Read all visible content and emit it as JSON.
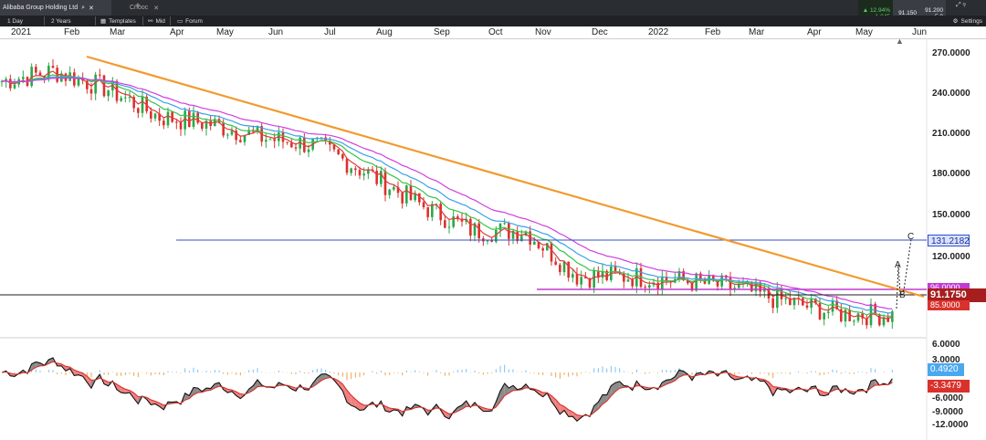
{
  "window": {
    "tab_title": "Alibaba Group Holding Ltd",
    "tab2_title": "Cnooc",
    "tab_new_icon": "+"
  },
  "toolbar": {
    "interval": "1 Day",
    "range": "2 Years",
    "templates_label": "Templates",
    "mid_label": "Mid",
    "forum_label": "Forum",
    "settings_label": "Settings"
  },
  "quote": {
    "change_pct": "▲ 12.94%",
    "change_abs": "1,045",
    "bid": "91.150",
    "ask": "91.200",
    "spread": "5.0"
  },
  "time_axis": [
    "2021",
    "Feb",
    "Mar",
    "Apr",
    "May",
    "Jun",
    "Jul",
    "Aug",
    "Sep",
    "Oct",
    "Nov",
    "Dec",
    "2022",
    "Feb",
    "Mar",
    "Apr",
    "May",
    "Jun"
  ],
  "price_axis": [
    "270.0000",
    "240.0000",
    "210.0000",
    "180.0000",
    "150.0000",
    "120.0000"
  ],
  "osc_axis": [
    "6.0000",
    "3.0000",
    "-6.0000",
    "-9.0000",
    "-12.0000"
  ],
  "badges": {
    "horizontal_line": "131.2182",
    "current_price": "91.1750",
    "magenta_line": "96.0000",
    "low_price": "85.9000",
    "osc_blue": "0.4920",
    "osc_red": "-3.3479"
  },
  "annotations": {
    "a": "A",
    "b": "B",
    "c": "C"
  },
  "colors": {
    "up_candle": "#29a84a",
    "down_candle": "#d9322c",
    "trendline": "#f29a2e",
    "hline": "#2f4fd1",
    "magenta": "#c23bd1",
    "ema_red": "#e03a3a",
    "ema_green": "#39c24a",
    "ema_blue": "#3aa0e8",
    "ema_magenta": "#d23ce0",
    "price_badge": "#a61e1e"
  },
  "chart_data": {
    "type": "line",
    "title": "",
    "xlabel": "",
    "ylabel": "",
    "x": [
      "2021",
      "Feb",
      "Mar",
      "Apr",
      "May",
      "Jun",
      "Jul",
      "Aug",
      "Sep",
      "Oct",
      "Nov",
      "Dec",
      "2022",
      "Feb",
      "Mar",
      "Apr",
      "May",
      "Jun"
    ],
    "ylim": [
      75,
      285
    ],
    "series": [
      {
        "values": [
          255,
          262,
          250,
          230,
          225,
          215,
          210,
          190,
          168,
          150,
          150,
          118,
          118,
          115,
          110,
          100,
          92,
          91
        ]
      }
    ]
  }
}
